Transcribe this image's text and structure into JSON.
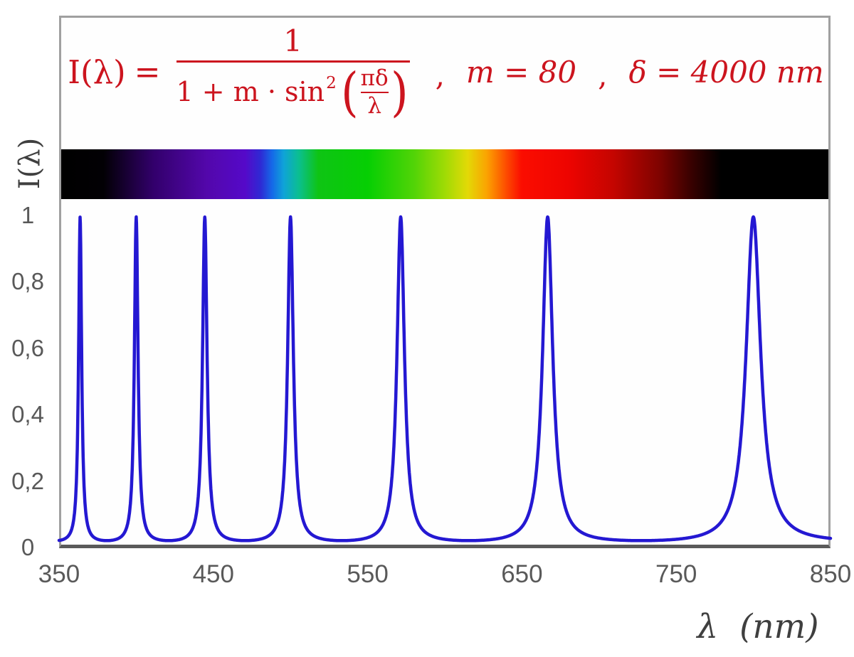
{
  "colors": {
    "formula_red": "#cc141e",
    "curve_blue": "#2418d2",
    "tick_gray": "#595959",
    "axis_title_gray": "#3f3f3f",
    "frame_gray": "#a0a0a0",
    "axis_line_gray": "#5a5a5a"
  },
  "formula": {
    "lhs": "I(λ)",
    "eq": "=",
    "numerator": "1",
    "den_prefix": "1 + m · sin",
    "den_sup": "2",
    "lparen": "(",
    "rparen": ")",
    "inner_num": "πδ",
    "inner_den": "λ",
    "comma1": ",",
    "comma2": ",",
    "param_m": "m = 80",
    "param_delta": "δ = 4000 nm"
  },
  "axes": {
    "y_label": "I(λ)",
    "x_label": "λ  (nm)",
    "y_ticks": [
      {
        "label": "0",
        "value": 0
      },
      {
        "label": "0,2",
        "value": 0.2
      },
      {
        "label": "0,4",
        "value": 0.4
      },
      {
        "label": "0,6",
        "value": 0.6
      },
      {
        "label": "0,8",
        "value": 0.8
      },
      {
        "label": "1",
        "value": 1
      }
    ],
    "x_ticks": [
      {
        "label": "350",
        "value": 350
      },
      {
        "label": "450",
        "value": 450
      },
      {
        "label": "550",
        "value": 550
      },
      {
        "label": "650",
        "value": 650
      },
      {
        "label": "750",
        "value": 750
      },
      {
        "label": "850",
        "value": 850
      }
    ]
  },
  "chart_data": {
    "type": "line",
    "title": "I(λ) = 1 / (1 + m·sin²(πδ/λ)) ,  m = 80 ,  δ = 4000 nm",
    "xlabel": "λ (nm)",
    "ylabel": "I(λ)",
    "xlim": [
      350,
      850
    ],
    "ylim": [
      0,
      1
    ],
    "grid": false,
    "legend": "none",
    "series": [
      {
        "name": "I(λ)",
        "model": "airy_transmission",
        "formula": "I(λ) = 1 / (1 + m·sin²(π·δ/λ))",
        "params": {
          "m": 80,
          "delta_nm": 4000
        },
        "color": "#2418d2",
        "peaks_nm": [
          363.6,
          400.0,
          444.4,
          500.0,
          571.4,
          666.7,
          800.0
        ],
        "peak_value": 1,
        "min_value": 0.012
      }
    ],
    "spectrum_bar": {
      "range_nm": [
        350,
        850
      ],
      "dark_below_nm": 380,
      "dark_above_nm": 780,
      "gradient_stops": [
        {
          "pos": 0,
          "color": "#000000"
        },
        {
          "pos": 5.5,
          "color": "#020004"
        },
        {
          "pos": 12,
          "color": "#32006b"
        },
        {
          "pos": 19,
          "color": "#5307ab"
        },
        {
          "pos": 24,
          "color": "#5509c9"
        },
        {
          "pos": 26,
          "color": "#2e2ad4"
        },
        {
          "pos": 27.5,
          "color": "#1569e8"
        },
        {
          "pos": 29,
          "color": "#0fa3d8"
        },
        {
          "pos": 31,
          "color": "#0bbf8f"
        },
        {
          "pos": 33.5,
          "color": "#0ec414"
        },
        {
          "pos": 40,
          "color": "#06cf03"
        },
        {
          "pos": 46,
          "color": "#52d407"
        },
        {
          "pos": 50,
          "color": "#9fdb05"
        },
        {
          "pos": 53,
          "color": "#e3d906"
        },
        {
          "pos": 55.5,
          "color": "#fba201"
        },
        {
          "pos": 58,
          "color": "#fd4c00"
        },
        {
          "pos": 60,
          "color": "#fb0d00"
        },
        {
          "pos": 66,
          "color": "#ee0400"
        },
        {
          "pos": 72,
          "color": "#c40500"
        },
        {
          "pos": 78,
          "color": "#7e0300"
        },
        {
          "pos": 82,
          "color": "#3a0100"
        },
        {
          "pos": 86,
          "color": "#000000"
        },
        {
          "pos": 100,
          "color": "#000000"
        }
      ]
    }
  }
}
